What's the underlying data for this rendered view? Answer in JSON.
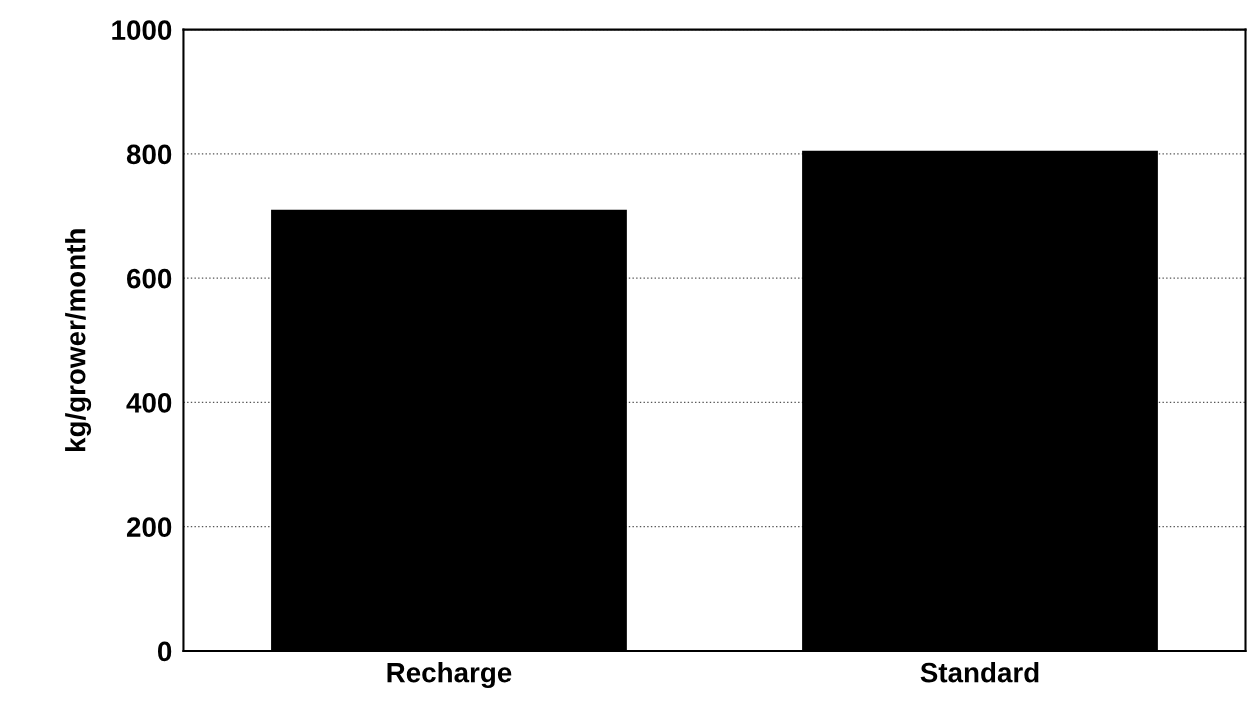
{
  "chart_data": {
    "type": "bar",
    "ylabel": "kg/grower/month",
    "categories": [
      "Recharge",
      "Standard"
    ],
    "values": [
      710,
      805
    ],
    "color": "#000000",
    "ylim": [
      0,
      1000
    ],
    "yticks": [
      0,
      200,
      400,
      600,
      800,
      1000
    ],
    "grid": "y",
    "line_style": "dotted"
  }
}
